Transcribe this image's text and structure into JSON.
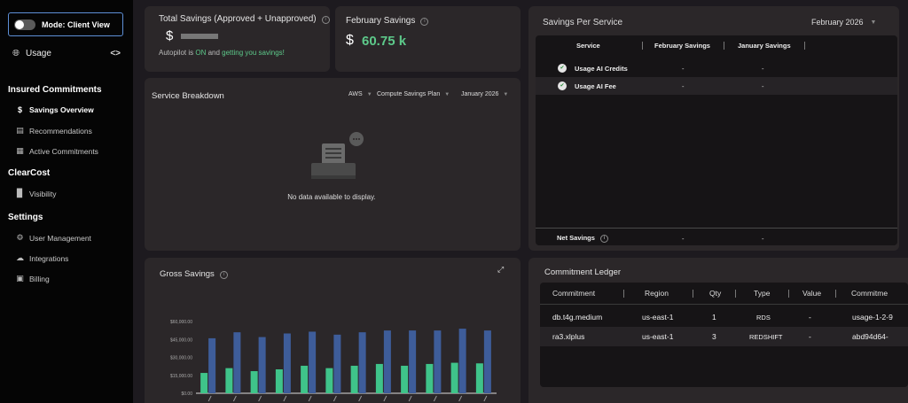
{
  "sidebar": {
    "mode_label": "Mode: Client View",
    "usage_label": "Usage",
    "collapse_label": "<>",
    "sections": [
      {
        "title": "Insured Commitments",
        "items": [
          {
            "label": "Savings Overview",
            "icon": "dollar-icon",
            "active": true
          },
          {
            "label": "Recommendations",
            "icon": "calendar-icon",
            "active": false
          },
          {
            "label": "Active Commitments",
            "icon": "chart-box-icon",
            "active": false
          }
        ]
      },
      {
        "title": "ClearCost",
        "items": [
          {
            "label": "Visibility",
            "icon": "bar-chart-icon",
            "active": false
          }
        ]
      },
      {
        "title": "Settings",
        "items": [
          {
            "label": "User Management",
            "icon": "gear-icon",
            "active": false
          },
          {
            "label": "Integrations",
            "icon": "cloud-icon",
            "active": false
          },
          {
            "label": "Billing",
            "icon": "billing-icon",
            "active": false
          }
        ]
      }
    ]
  },
  "total_savings": {
    "title": "Total Savings (Approved + Unapproved)",
    "currency": "$",
    "autopilot_prefix": "Autopilot is ",
    "autopilot_state": "ON",
    "autopilot_mid": " and ",
    "autopilot_link": "getting you savings!"
  },
  "february_savings": {
    "title": "February Savings",
    "currency": "$",
    "value": "60.75 k"
  },
  "service_breakdown": {
    "title": "Service Breakdown",
    "filters": [
      "AWS",
      "Compute Savings Plan",
      "January 2026"
    ],
    "empty_text": "No data available to display."
  },
  "savings_per_service": {
    "title": "Savings Per Service",
    "month": "February 2026",
    "columns": [
      "Service",
      "February Savings",
      "January Savings"
    ],
    "rows": [
      {
        "service": "Usage AI Credits",
        "feb": "-",
        "jan": "-"
      },
      {
        "service": "Usage AI Fee",
        "feb": "-",
        "jan": "-"
      }
    ],
    "footer": {
      "label": "Net Savings",
      "feb": "-",
      "jan": "-"
    }
  },
  "gross_savings": {
    "title": "Gross Savings"
  },
  "chart_data": {
    "type": "bar",
    "title": "Gross Savings",
    "yticks": [
      "$0.00",
      "$15,000.00",
      "$30,000.00",
      "$45,000.00",
      "$60,000.00"
    ],
    "ylim": [
      0,
      60000
    ],
    "series": [
      {
        "color": "#3fc48a",
        "values": [
          17000,
          21000,
          18500,
          20000,
          23000,
          21000,
          23000,
          24500,
          23000,
          24500,
          25500,
          25000
        ]
      },
      {
        "color": "#3e5d9a",
        "values": [
          46000,
          51000,
          47000,
          50000,
          51500,
          49000,
          51000,
          52500,
          52500,
          52500,
          54000,
          52500
        ]
      }
    ]
  },
  "commitment_ledger": {
    "title": "Commitment Ledger",
    "columns": [
      "Commitment",
      "Region",
      "Qty",
      "Type",
      "Value",
      "Commitme"
    ],
    "rows": [
      {
        "commitment": "db.t4g.medium",
        "region": "us-east-1",
        "qty": "1",
        "type": "RDS",
        "value": "-",
        "id": "usage-1-2-9"
      },
      {
        "commitment": "ra3.xlplus",
        "region": "us-east-1",
        "qty": "3",
        "type": "REDSHIFT",
        "value": "-",
        "id": "abd94d64-"
      }
    ]
  },
  "colors": {
    "accent_green": "#5dc98a",
    "toggle_border": "#5d8fd6",
    "bar_green": "#3fc48a",
    "bar_blue": "#3e5d9a"
  }
}
